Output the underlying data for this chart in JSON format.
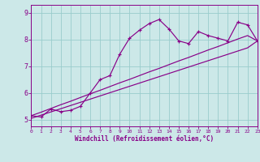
{
  "xlabel": "Windchill (Refroidissement éolien,°C)",
  "xlim": [
    0,
    23
  ],
  "ylim": [
    4.75,
    9.3
  ],
  "bg_color": "#cce8e8",
  "line_color": "#880088",
  "grid_color": "#99cccc",
  "hours": [
    0,
    1,
    2,
    3,
    4,
    5,
    6,
    7,
    8,
    9,
    10,
    11,
    12,
    13,
    14,
    15,
    16,
    17,
    18,
    19,
    20,
    21,
    22,
    23
  ],
  "temp_data": [
    5.15,
    5.1,
    5.4,
    5.3,
    5.35,
    5.5,
    6.0,
    6.5,
    6.65,
    7.45,
    8.05,
    8.35,
    8.6,
    8.75,
    8.4,
    7.95,
    7.85,
    8.3,
    8.15,
    8.05,
    7.95,
    8.65,
    8.55,
    7.95
  ],
  "trend1": [
    5.15,
    5.28,
    5.42,
    5.56,
    5.69,
    5.83,
    5.97,
    6.1,
    6.24,
    6.38,
    6.51,
    6.65,
    6.79,
    6.92,
    7.06,
    7.2,
    7.33,
    7.47,
    7.61,
    7.74,
    7.88,
    8.02,
    8.15,
    7.95
  ],
  "trend2": [
    5.05,
    5.17,
    5.29,
    5.41,
    5.53,
    5.65,
    5.77,
    5.89,
    6.01,
    6.13,
    6.25,
    6.37,
    6.49,
    6.61,
    6.73,
    6.85,
    6.97,
    7.09,
    7.21,
    7.33,
    7.45,
    7.57,
    7.69,
    7.95
  ],
  "xticks": [
    0,
    1,
    2,
    3,
    4,
    5,
    6,
    7,
    8,
    9,
    10,
    11,
    12,
    13,
    14,
    15,
    16,
    17,
    18,
    19,
    20,
    21,
    22,
    23
  ],
  "yticks": [
    5,
    6,
    7,
    8,
    9
  ]
}
